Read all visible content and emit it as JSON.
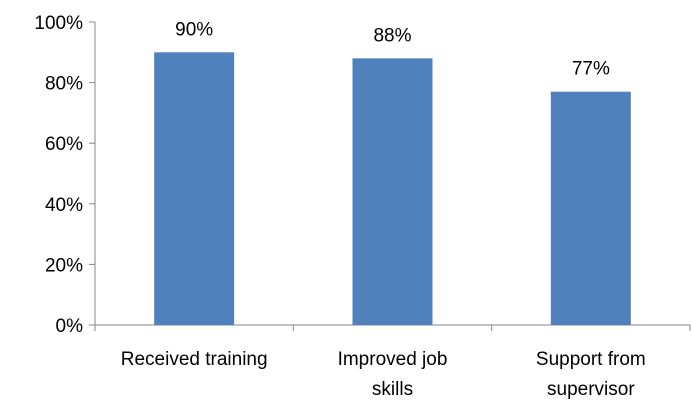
{
  "chart_data": {
    "type": "bar",
    "title": "",
    "xlabel": "",
    "ylabel": "",
    "categories": [
      "Received training",
      "Improved job skills",
      "Support from supervisor"
    ],
    "category_lines": [
      [
        "Received training"
      ],
      [
        "Improved job",
        "skills"
      ],
      [
        "Support from",
        "supervisor"
      ]
    ],
    "values": [
      90,
      88,
      77
    ],
    "data_labels": [
      "90%",
      "88%",
      "77%"
    ],
    "ylim": [
      0,
      100
    ],
    "yticks": [
      0,
      20,
      40,
      60,
      80,
      100
    ],
    "ytick_labels": [
      "0%",
      "20%",
      "40%",
      "60%",
      "80%",
      "100%"
    ],
    "grid": false,
    "legend": "none",
    "bar_color": "#4f81bd",
    "axis_color": "#868686"
  }
}
